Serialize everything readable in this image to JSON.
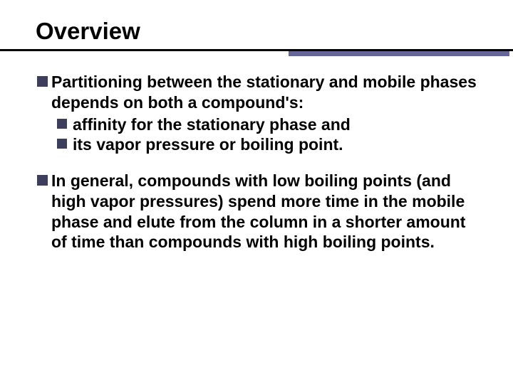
{
  "slide": {
    "title": "Overview",
    "bullets": [
      {
        "text": "Partitioning between the stationary and mobile phases depends on both a compound's:",
        "subbullets": [
          "affinity for the stationary phase and",
          "its vapor pressure or boiling point."
        ]
      },
      {
        "text": "In general, compounds with low boiling points (and high vapor pressures) spend more time in the mobile phase and elute from the column in a shorter amount of time than compounds with high boiling points.",
        "subbullets": []
      }
    ],
    "colors": {
      "text": "#000000",
      "bullet_square": "#3d3d5c",
      "underline_main": "#000000",
      "underline_accent": "#666699",
      "background": "#ffffff"
    },
    "typography": {
      "title_fontsize": 33,
      "body_fontsize": 23,
      "font_family": "Comic Sans MS",
      "font_weight": "bold"
    }
  }
}
